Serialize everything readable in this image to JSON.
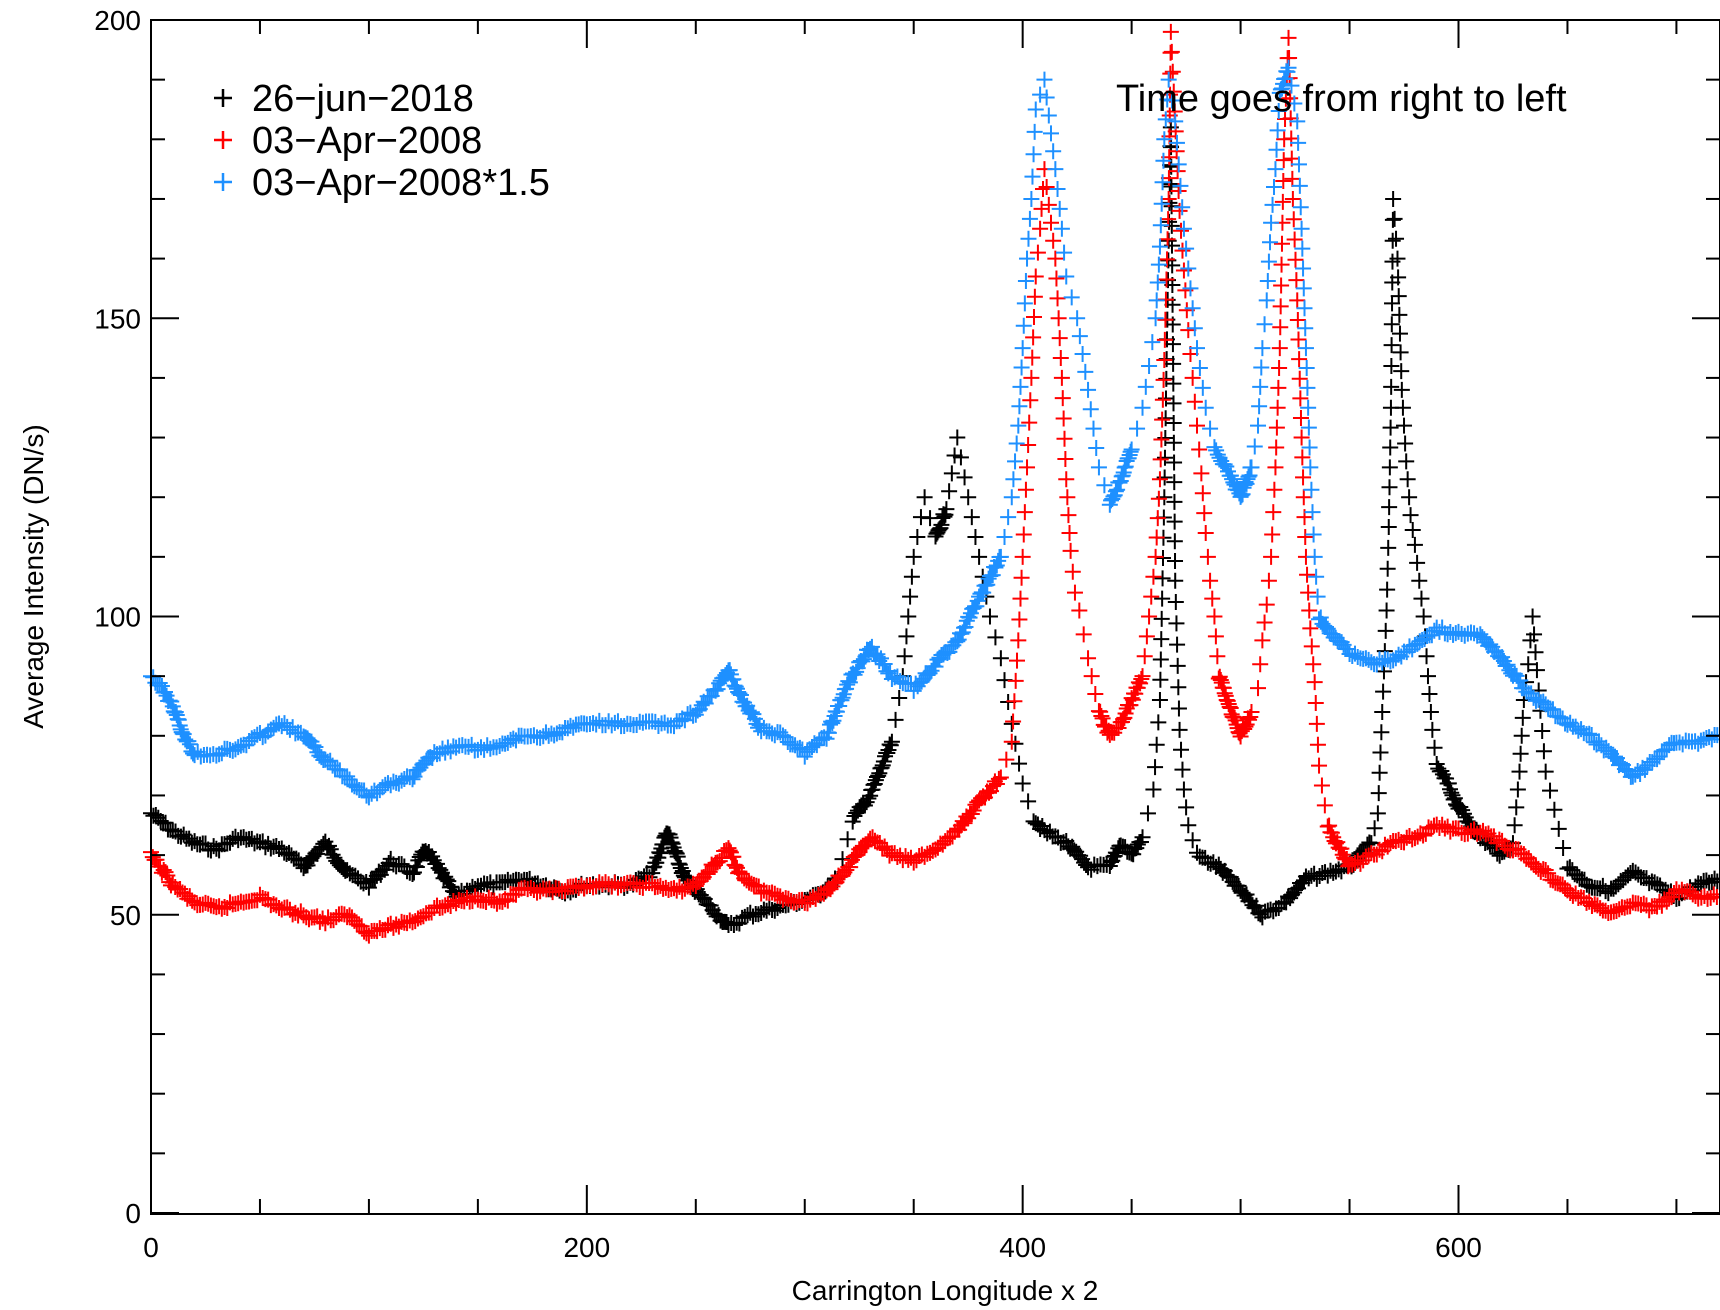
{
  "chart_data": {
    "type": "scatter",
    "title": "",
    "xlabel": "Carrington Longitude x 2",
    "ylabel": "Average Intensity (DN/s)",
    "xlim": [
      0,
      720
    ],
    "ylim": [
      0,
      200
    ],
    "x_ticks": [
      0,
      200,
      400,
      600
    ],
    "y_ticks": [
      0,
      50,
      100,
      150,
      200
    ],
    "x_minor_step": 50,
    "y_minor_step": 10,
    "grid": false,
    "marker": "+",
    "legend_position": "top-left",
    "annotation": "Time goes from right to left",
    "series": [
      {
        "name": "26−jun−2018",
        "color": "#000000",
        "points": [
          [
            0,
            67
          ],
          [
            10,
            64
          ],
          [
            20,
            62
          ],
          [
            30,
            61
          ],
          [
            40,
            63
          ],
          [
            50,
            62
          ],
          [
            60,
            61
          ],
          [
            70,
            58
          ],
          [
            80,
            62
          ],
          [
            90,
            57
          ],
          [
            100,
            55
          ],
          [
            110,
            59
          ],
          [
            120,
            57
          ],
          [
            126,
            61
          ],
          [
            135,
            56
          ],
          [
            140,
            53
          ],
          [
            150,
            55
          ],
          [
            160,
            55
          ],
          [
            170,
            56
          ],
          [
            180,
            55
          ],
          [
            190,
            54
          ],
          [
            200,
            55
          ],
          [
            210,
            55
          ],
          [
            220,
            55
          ],
          [
            230,
            57
          ],
          [
            237,
            64
          ],
          [
            245,
            56
          ],
          [
            255,
            52
          ],
          [
            265,
            48
          ],
          [
            275,
            50
          ],
          [
            285,
            51
          ],
          [
            295,
            52
          ],
          [
            305,
            53
          ],
          [
            315,
            56
          ],
          [
            322,
            66
          ],
          [
            330,
            70
          ],
          [
            340,
            79
          ],
          [
            345,
            90
          ],
          [
            350,
            110
          ],
          [
            355,
            120
          ],
          [
            360,
            113
          ],
          [
            365,
            118
          ],
          [
            370,
            130
          ],
          [
            375,
            120
          ],
          [
            380,
            110
          ],
          [
            385,
            100
          ],
          [
            390,
            93
          ],
          [
            395,
            82
          ],
          [
            400,
            72
          ],
          [
            405,
            66
          ],
          [
            410,
            64
          ],
          [
            420,
            62
          ],
          [
            430,
            58
          ],
          [
            440,
            58
          ],
          [
            445,
            62
          ],
          [
            450,
            60
          ],
          [
            455,
            63
          ],
          [
            460,
            71
          ],
          [
            463,
            86
          ],
          [
            465,
            120
          ],
          [
            467,
            163
          ],
          [
            468,
            182
          ],
          [
            470,
            106
          ],
          [
            472,
            81
          ],
          [
            474,
            71
          ],
          [
            476,
            65
          ],
          [
            480,
            60
          ],
          [
            490,
            58
          ],
          [
            500,
            54
          ],
          [
            510,
            50
          ],
          [
            520,
            52
          ],
          [
            530,
            56
          ],
          [
            540,
            57
          ],
          [
            550,
            58
          ],
          [
            560,
            62
          ],
          [
            563,
            67
          ],
          [
            565,
            84
          ],
          [
            567,
            101
          ],
          [
            568,
            115
          ],
          [
            569,
            135
          ],
          [
            570,
            170
          ],
          [
            572,
            160
          ],
          [
            574,
            138
          ],
          [
            576,
            126
          ],
          [
            578,
            117
          ],
          [
            580,
            112
          ],
          [
            582,
            106
          ],
          [
            584,
            100
          ],
          [
            586,
            90
          ],
          [
            588,
            81
          ],
          [
            590,
            75
          ],
          [
            595,
            72
          ],
          [
            600,
            68
          ],
          [
            610,
            63
          ],
          [
            620,
            60
          ],
          [
            625,
            62
          ],
          [
            628,
            74
          ],
          [
            630,
            86
          ],
          [
            632,
            92
          ],
          [
            634,
            100
          ],
          [
            636,
            91
          ],
          [
            640,
            74
          ],
          [
            650,
            58
          ],
          [
            660,
            55
          ],
          [
            670,
            54
          ],
          [
            680,
            57
          ],
          [
            690,
            55
          ],
          [
            700,
            53
          ],
          [
            710,
            55
          ],
          [
            720,
            56
          ]
        ]
      },
      {
        "name": "03−Apr−2008",
        "color": "#ff0000",
        "points": [
          [
            0,
            60
          ],
          [
            10,
            55
          ],
          [
            20,
            52
          ],
          [
            30,
            51
          ],
          [
            40,
            52
          ],
          [
            50,
            53
          ],
          [
            60,
            51
          ],
          [
            70,
            50
          ],
          [
            80,
            49
          ],
          [
            90,
            50
          ],
          [
            100,
            47
          ],
          [
            110,
            48
          ],
          [
            120,
            49
          ],
          [
            130,
            51
          ],
          [
            140,
            52
          ],
          [
            150,
            53
          ],
          [
            160,
            52
          ],
          [
            170,
            54
          ],
          [
            180,
            54
          ],
          [
            190,
            54
          ],
          [
            200,
            55
          ],
          [
            210,
            55
          ],
          [
            220,
            55
          ],
          [
            230,
            55
          ],
          [
            240,
            54
          ],
          [
            250,
            55
          ],
          [
            260,
            59
          ],
          [
            265,
            61
          ],
          [
            270,
            57
          ],
          [
            280,
            54
          ],
          [
            290,
            53
          ],
          [
            300,
            52
          ],
          [
            310,
            54
          ],
          [
            320,
            58
          ],
          [
            330,
            63
          ],
          [
            340,
            60
          ],
          [
            350,
            59
          ],
          [
            360,
            61
          ],
          [
            370,
            64
          ],
          [
            380,
            69
          ],
          [
            390,
            73
          ],
          [
            395,
            79
          ],
          [
            398,
            96
          ],
          [
            400,
            110
          ],
          [
            402,
            125
          ],
          [
            404,
            140
          ],
          [
            406,
            157
          ],
          [
            408,
            165
          ],
          [
            410,
            175
          ],
          [
            415,
            160
          ],
          [
            418,
            140
          ],
          [
            420,
            123
          ],
          [
            422,
            111
          ],
          [
            424,
            104
          ],
          [
            426,
            101
          ],
          [
            430,
            93
          ],
          [
            435,
            84
          ],
          [
            440,
            80
          ],
          [
            445,
            82
          ],
          [
            450,
            86
          ],
          [
            455,
            90
          ],
          [
            458,
            100
          ],
          [
            461,
            110
          ],
          [
            463,
            123
          ],
          [
            465,
            143
          ],
          [
            467,
            170
          ],
          [
            468,
            198
          ],
          [
            472,
            168
          ],
          [
            476,
            148
          ],
          [
            478,
            140
          ],
          [
            480,
            132
          ],
          [
            482,
            124
          ],
          [
            484,
            114
          ],
          [
            486,
            106
          ],
          [
            488,
            100
          ],
          [
            490,
            90
          ],
          [
            495,
            85
          ],
          [
            500,
            80
          ],
          [
            505,
            84
          ],
          [
            508,
            88
          ],
          [
            510,
            96
          ],
          [
            512,
            102
          ],
          [
            514,
            110
          ],
          [
            516,
            125
          ],
          [
            518,
            145
          ],
          [
            520,
            180
          ],
          [
            522,
            197
          ],
          [
            524,
            170
          ],
          [
            526,
            153
          ],
          [
            528,
            130
          ],
          [
            530,
            110
          ],
          [
            532,
            98
          ],
          [
            534,
            89
          ],
          [
            536,
            75
          ],
          [
            540,
            65
          ],
          [
            550,
            58
          ],
          [
            560,
            60
          ],
          [
            570,
            62
          ],
          [
            580,
            63
          ],
          [
            590,
            65
          ],
          [
            600,
            64
          ],
          [
            610,
            64
          ],
          [
            620,
            62
          ],
          [
            630,
            60
          ],
          [
            640,
            57
          ],
          [
            650,
            54
          ],
          [
            660,
            52
          ],
          [
            670,
            50
          ],
          [
            680,
            52
          ],
          [
            690,
            51
          ],
          [
            700,
            54
          ],
          [
            710,
            53
          ],
          [
            720,
            53
          ]
        ]
      },
      {
        "name": "03−Apr−2008*1.5",
        "color": "#1e90ff",
        "points": [
          [
            0,
            90
          ],
          [
            5,
            88
          ],
          [
            10,
            85
          ],
          [
            15,
            80
          ],
          [
            20,
            77
          ],
          [
            30,
            77
          ],
          [
            40,
            78
          ],
          [
            50,
            80
          ],
          [
            60,
            82
          ],
          [
            70,
            80
          ],
          [
            80,
            76
          ],
          [
            90,
            73
          ],
          [
            100,
            70
          ],
          [
            110,
            72
          ],
          [
            120,
            73
          ],
          [
            130,
            77
          ],
          [
            140,
            78
          ],
          [
            150,
            78
          ],
          [
            160,
            78
          ],
          [
            170,
            80
          ],
          [
            180,
            80
          ],
          [
            190,
            81
          ],
          [
            200,
            82
          ],
          [
            210,
            82
          ],
          [
            220,
            82
          ],
          [
            230,
            82
          ],
          [
            240,
            82
          ],
          [
            250,
            84
          ],
          [
            260,
            88
          ],
          [
            265,
            91
          ],
          [
            270,
            87
          ],
          [
            280,
            81
          ],
          [
            290,
            80
          ],
          [
            300,
            77
          ],
          [
            310,
            80
          ],
          [
            320,
            89
          ],
          [
            330,
            95
          ],
          [
            340,
            90
          ],
          [
            350,
            88
          ],
          [
            360,
            92
          ],
          [
            370,
            96
          ],
          [
            380,
            103
          ],
          [
            390,
            110
          ],
          [
            395,
            120
          ],
          [
            398,
            132
          ],
          [
            400,
            145
          ],
          [
            402,
            160
          ],
          [
            404,
            170
          ],
          [
            406,
            185
          ],
          [
            410,
            190
          ],
          [
            415,
            175
          ],
          [
            418,
            165
          ],
          [
            420,
            157
          ],
          [
            425,
            150
          ],
          [
            430,
            138
          ],
          [
            435,
            125
          ],
          [
            440,
            119
          ],
          [
            445,
            123
          ],
          [
            450,
            128
          ],
          [
            455,
            135
          ],
          [
            458,
            142
          ],
          [
            461,
            150
          ],
          [
            463,
            162
          ],
          [
            465,
            180
          ],
          [
            467,
            190
          ],
          [
            470,
            183
          ],
          [
            474,
            165
          ],
          [
            477,
            155
          ],
          [
            480,
            145
          ],
          [
            484,
            135
          ],
          [
            488,
            128
          ],
          [
            495,
            124
          ],
          [
            500,
            120
          ],
          [
            505,
            125
          ],
          [
            508,
            132
          ],
          [
            510,
            145
          ],
          [
            512,
            153
          ],
          [
            514,
            166
          ],
          [
            516,
            175
          ],
          [
            518,
            188
          ],
          [
            522,
            192
          ],
          [
            526,
            183
          ],
          [
            528,
            165
          ],
          [
            530,
            145
          ],
          [
            532,
            125
          ],
          [
            534,
            110
          ],
          [
            536,
            100
          ],
          [
            540,
            98
          ],
          [
            550,
            94
          ],
          [
            560,
            92
          ],
          [
            570,
            93
          ],
          [
            580,
            95
          ],
          [
            590,
            98
          ],
          [
            600,
            97
          ],
          [
            610,
            97
          ],
          [
            620,
            93
          ],
          [
            630,
            88
          ],
          [
            640,
            85
          ],
          [
            650,
            82
          ],
          [
            660,
            80
          ],
          [
            670,
            77
          ],
          [
            680,
            73
          ],
          [
            690,
            76
          ],
          [
            700,
            79
          ],
          [
            710,
            79
          ],
          [
            720,
            80
          ]
        ]
      }
    ]
  }
}
